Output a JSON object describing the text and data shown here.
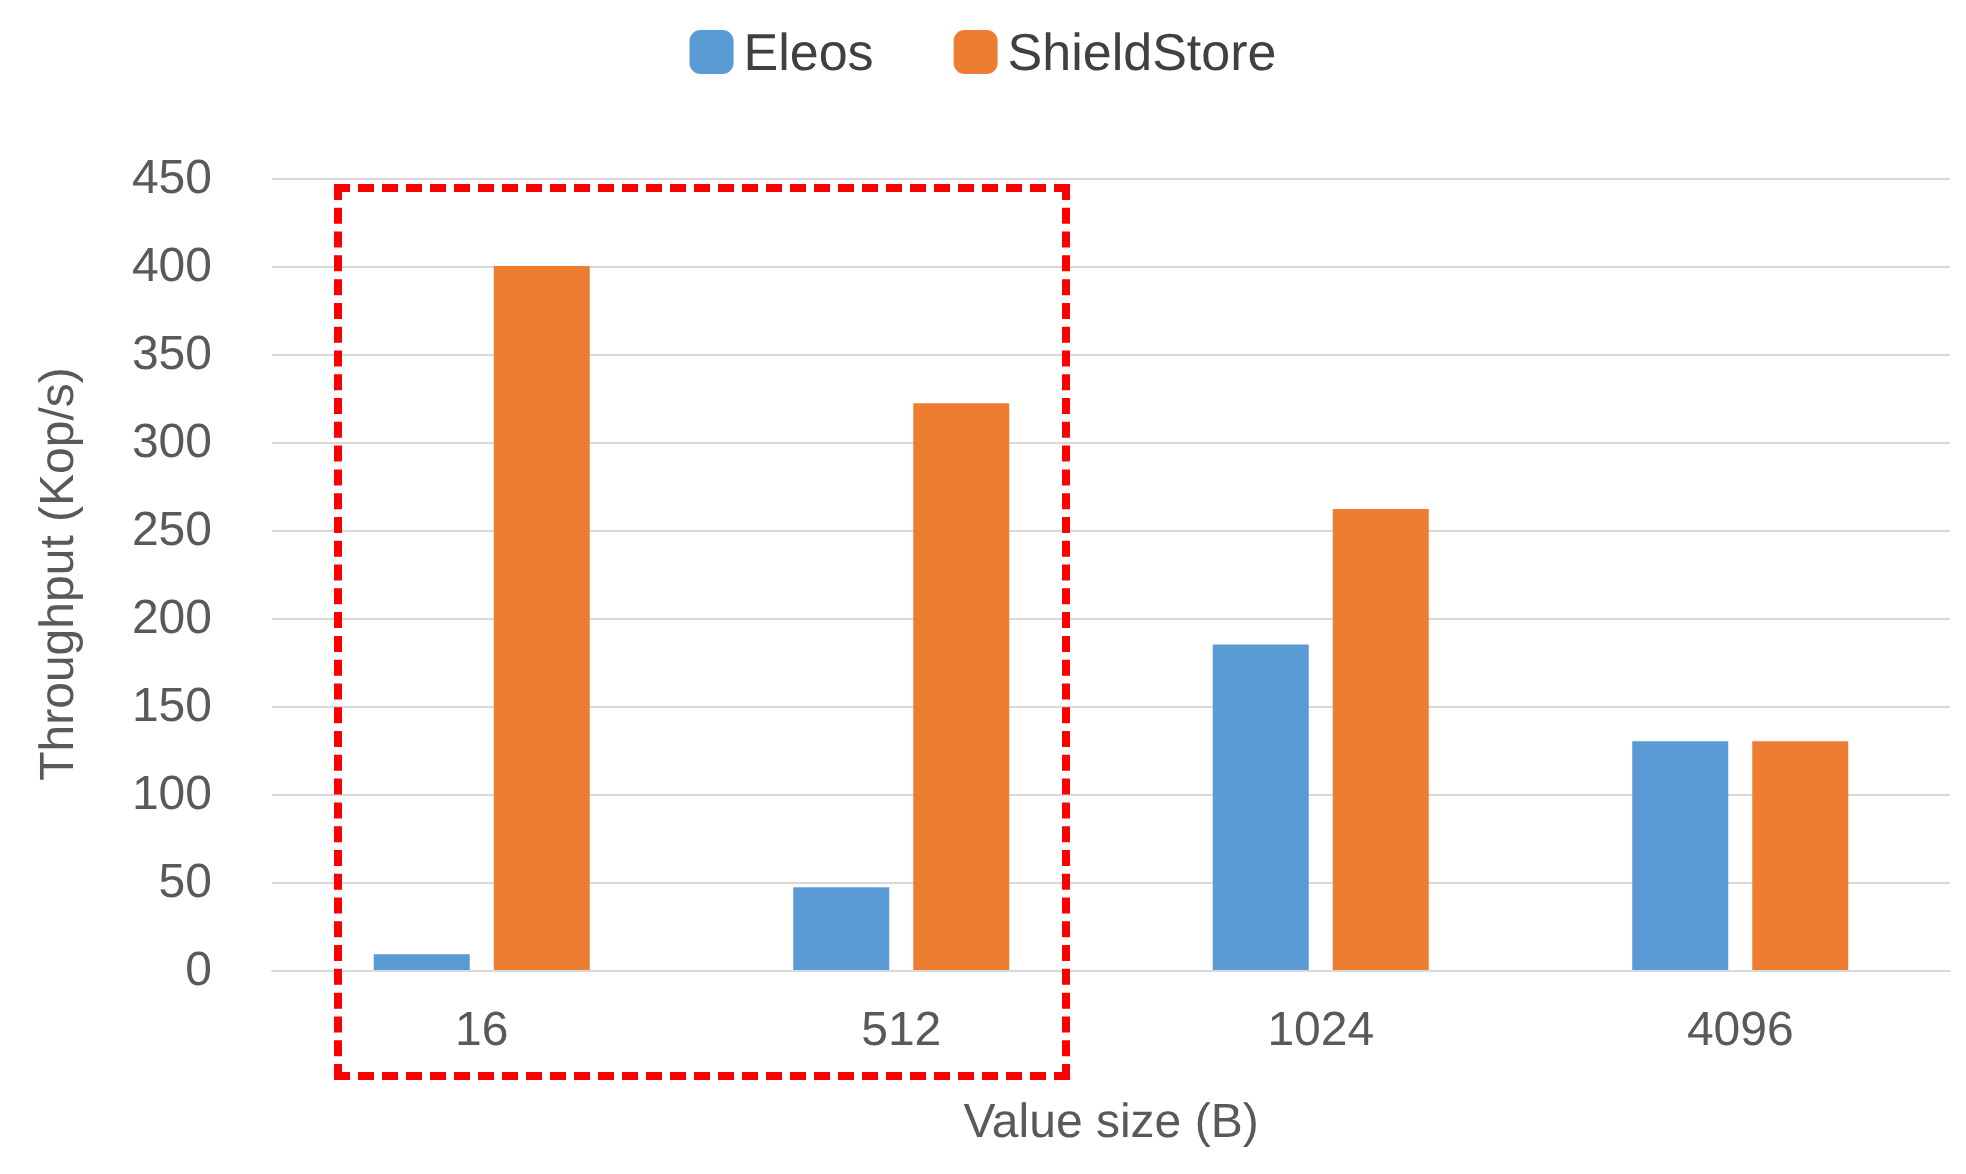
{
  "chart_data": {
    "type": "bar",
    "xlabel": "Value size (B)",
    "ylabel": "Throughput (Kop/s)",
    "categories": [
      "16",
      "512",
      "1024",
      "4096"
    ],
    "series": [
      {
        "name": "Eleos",
        "color": "#5b9bd5",
        "values": [
          9,
          47,
          185,
          130
        ]
      },
      {
        "name": "ShieldStore",
        "color": "#ed7d31",
        "values": [
          400,
          322,
          262,
          130
        ]
      }
    ],
    "ylim": [
      0,
      450
    ],
    "yticks": [
      0,
      50,
      100,
      150,
      200,
      250,
      300,
      350,
      400,
      450
    ],
    "grid": "y",
    "legend": "top"
  }
}
